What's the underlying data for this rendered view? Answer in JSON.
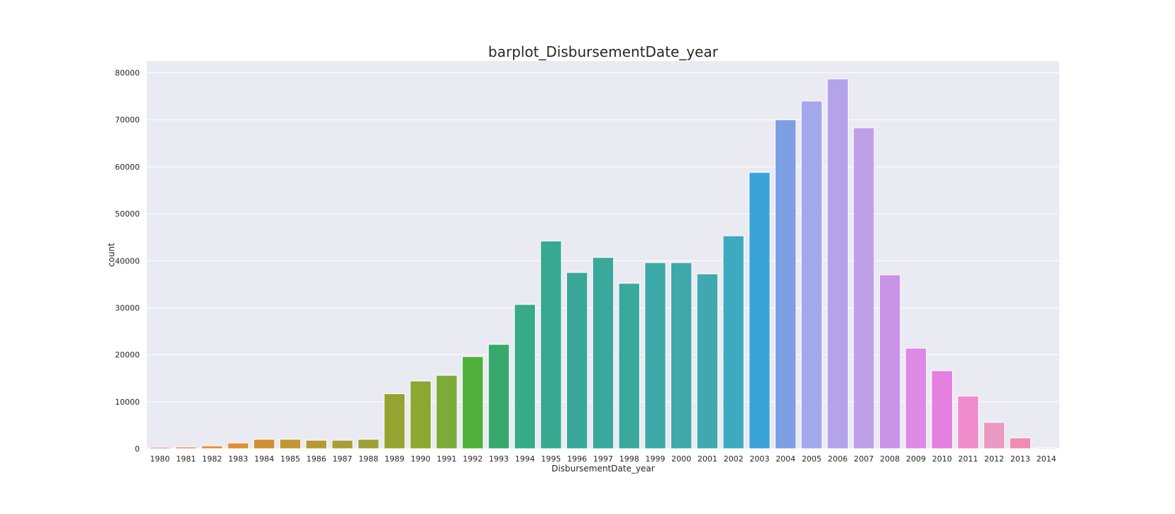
{
  "chart_data": {
    "type": "bar",
    "title": "barplot_DisbursementDate_year",
    "xlabel": "DisbursementDate_year",
    "ylabel": "count",
    "ylim": [
      0,
      82500
    ],
    "yticks": [
      0,
      10000,
      20000,
      30000,
      40000,
      50000,
      60000,
      70000,
      80000
    ],
    "grid": true,
    "legend": "none",
    "categories": [
      "1980",
      "1981",
      "1982",
      "1983",
      "1984",
      "1985",
      "1986",
      "1987",
      "1988",
      "1989",
      "1990",
      "1991",
      "1992",
      "1993",
      "1994",
      "1995",
      "1996",
      "1997",
      "1998",
      "1999",
      "2000",
      "2001",
      "2002",
      "2003",
      "2004",
      "2005",
      "2006",
      "2007",
      "2008",
      "2009",
      "2010",
      "2011",
      "2012",
      "2013",
      "2014"
    ],
    "values": [
      300,
      350,
      600,
      1200,
      2000,
      2000,
      1800,
      1800,
      2000,
      11700,
      14400,
      15600,
      19600,
      22200,
      30700,
      44200,
      37500,
      40700,
      35200,
      39600,
      39600,
      37200,
      45300,
      58800,
      70000,
      74000,
      78700,
      68300,
      37000,
      21400,
      16600,
      11200,
      5600,
      2300,
      200
    ],
    "colors": [
      "#f77189",
      "#f7754f",
      "#e58d38",
      "#dd8f32",
      "#ce9032",
      "#c29632",
      "#b59a32",
      "#aa9d33",
      "#9ea034",
      "#97a331",
      "#8ba831",
      "#7bab38",
      "#4fb03b",
      "#38a96d",
      "#37ab86",
      "#37a991",
      "#39a797",
      "#3aa89b",
      "#3ba89f",
      "#3da8a8",
      "#3ea8ab",
      "#40a8b1",
      "#3ea9bf",
      "#3aa4d9",
      "#7d9fe3",
      "#a3a7ec",
      "#b4a2ea",
      "#bea0e9",
      "#cb93e8",
      "#dc8ae6",
      "#e57fe0",
      "#f08bcc",
      "#e99ac3",
      "#f08bb4",
      "#f586a2"
    ]
  }
}
